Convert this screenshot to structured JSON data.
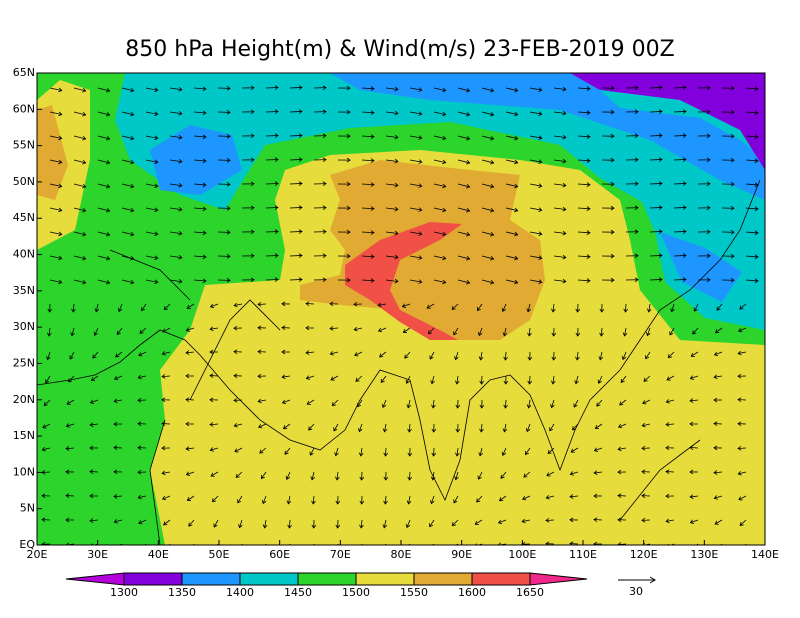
{
  "title": "850 hPa Height(m) & Wind(m/s) 23-FEB-2019 00Z",
  "map": {
    "lon_labels": [
      "20E",
      "30E",
      "40E",
      "50E",
      "60E",
      "70E",
      "80E",
      "90E",
      "100E",
      "110E",
      "120E",
      "130E",
      "140E"
    ],
    "lat_labels": [
      "EQ",
      "5N",
      "10N",
      "15N",
      "20N",
      "25N",
      "30N",
      "35N",
      "40N",
      "45N",
      "50N",
      "55N",
      "60N",
      "65N"
    ]
  },
  "colorbar": {
    "levels": [
      1300,
      1350,
      1400,
      1450,
      1500,
      1550,
      1600,
      1650
    ],
    "colors": [
      "#b400dc",
      "#8200dc",
      "#1e96ff",
      "#00c8c8",
      "#2cd42c",
      "#e6dc3c",
      "#e1aa32",
      "#f05046",
      "#f0288c"
    ]
  },
  "reference_vector": {
    "label": "30"
  }
}
